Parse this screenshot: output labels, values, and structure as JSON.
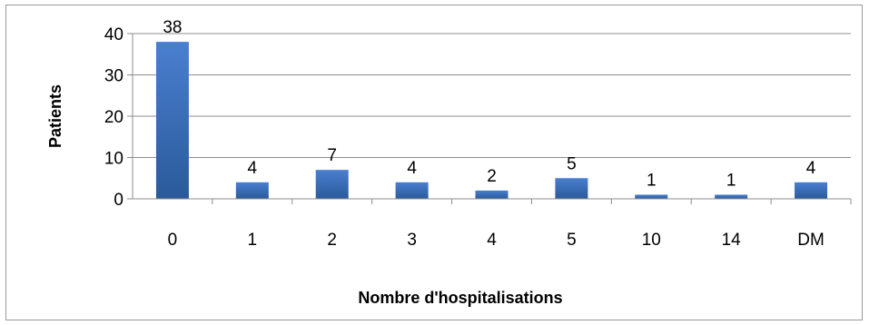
{
  "chart_data": {
    "type": "bar",
    "title": "",
    "xlabel": "Nombre d'hospitalisations",
    "ylabel": "Patients",
    "categories": [
      "0",
      "1",
      "2",
      "3",
      "4",
      "5",
      "10",
      "14",
      "DM"
    ],
    "values": [
      38,
      4,
      7,
      4,
      2,
      5,
      1,
      1,
      4
    ],
    "data_labels": [
      "38",
      "4",
      "7",
      "4",
      "2",
      "5",
      "1",
      "1",
      "4"
    ],
    "ylim": [
      0,
      40
    ],
    "yticks": [
      0,
      10,
      20,
      30,
      40
    ],
    "ytick_labels": [
      "0",
      "10",
      "20",
      "30",
      "40"
    ],
    "grid": true,
    "legend": "none",
    "colors": {
      "bar_top": "#4a7fd0",
      "bar_bottom": "#2a5a9a",
      "gridline": "#8c8c8c",
      "axis": "#8c8c8c"
    }
  }
}
